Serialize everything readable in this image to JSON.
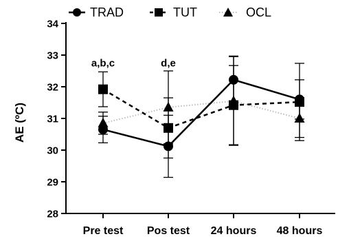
{
  "chart_data": {
    "type": "line",
    "ylabel": "AE (ºC)",
    "xlabel": "",
    "categories": [
      "Pre test",
      "Pos test",
      "24 hours",
      "48 hours"
    ],
    "ylim": [
      28,
      34
    ],
    "yticks": [
      28,
      29,
      30,
      31,
      32,
      33,
      34
    ],
    "legend_position": "top",
    "series": [
      {
        "name": "TRAD",
        "marker": "circle",
        "line_style": "solid",
        "color": "#000000",
        "values": [
          30.65,
          30.12,
          32.22,
          31.6
        ],
        "error": [
          0.42,
          0.98,
          0.75,
          0.62
        ]
      },
      {
        "name": "TUT",
        "marker": "square",
        "line_style": "dashed",
        "color": "#000000",
        "values": [
          31.92,
          30.7,
          31.42,
          31.52
        ],
        "error": [
          0.55,
          0.95,
          1.25,
          1.22
        ]
      },
      {
        "name": "OCL",
        "marker": "triangle",
        "line_style": "dotted",
        "color": "#bdbdbd",
        "values": [
          30.85,
          31.35,
          31.55,
          31.0
        ],
        "error": [
          0.35,
          1.15,
          1.4,
          0.6
        ]
      }
    ],
    "annotations": [
      {
        "text": "a,b,c",
        "category": "Pre test",
        "y": 32.75
      },
      {
        "text": "d,e",
        "category": "Pos test",
        "y": 32.75
      }
    ]
  }
}
